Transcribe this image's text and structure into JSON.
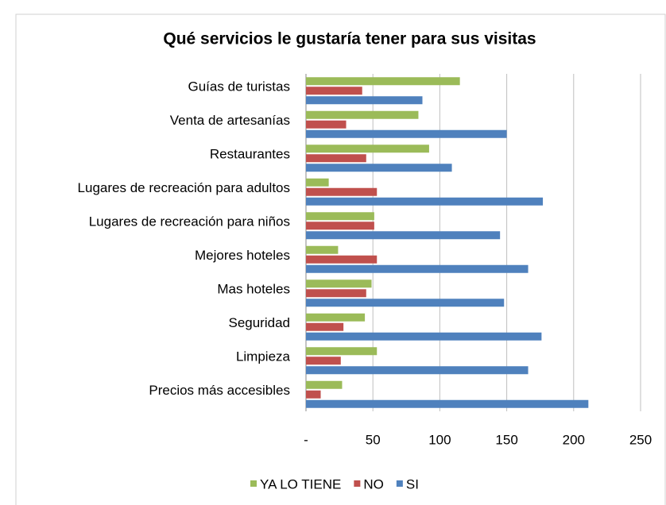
{
  "chart_data": {
    "type": "bar",
    "orientation": "horizontal",
    "title": "Qué servicios le gustaría tener para sus visitas",
    "categories": [
      "Guías de turistas",
      "Venta de artesanías",
      "Restaurantes",
      "Lugares de recreación para adultos",
      "Lugares de recreación para niños",
      "Mejores hoteles",
      "Mas hoteles",
      "Seguridad",
      "Limpieza",
      "Precios más accesibles"
    ],
    "series": [
      {
        "name": "YA LO TIENE",
        "color": "#9bbb59",
        "values": [
          115,
          84,
          92,
          17,
          51,
          24,
          49,
          44,
          53,
          27
        ]
      },
      {
        "name": "NO",
        "color": "#c0504d",
        "values": [
          42,
          30,
          45,
          53,
          51,
          53,
          45,
          28,
          26,
          11
        ]
      },
      {
        "name": "SI",
        "color": "#4f81bd",
        "values": [
          87,
          150,
          109,
          177,
          145,
          166,
          148,
          176,
          166,
          211
        ]
      }
    ],
    "xlim": [
      0,
      250
    ],
    "xticks": [
      {
        "value": 0,
        "label": "-"
      },
      50,
      100,
      150,
      200,
      250
    ],
    "grid": true,
    "legend": "bottom"
  }
}
